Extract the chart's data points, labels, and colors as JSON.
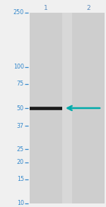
{
  "fig_width": 1.5,
  "fig_height": 2.93,
  "dpi": 100,
  "bg_color": "#f0f0f0",
  "gel_bg": "#d8d8d8",
  "lane_color": "#cecece",
  "marker_color": "#3388cc",
  "arrow_color": "#00aaaa",
  "band_color": "#1a1a1a",
  "lane_label_color": "#5588bb",
  "mw_markers": [
    250,
    100,
    75,
    50,
    37,
    25,
    20,
    15,
    10
  ],
  "mw_marker_labels": [
    "250",
    "100",
    "75",
    "50",
    "37",
    "25",
    "20",
    "15",
    "10"
  ],
  "lane_labels": [
    "1",
    "2"
  ],
  "band_mw": 50,
  "label_fontsize": 5.8,
  "lane_label_fontsize": 6.5
}
